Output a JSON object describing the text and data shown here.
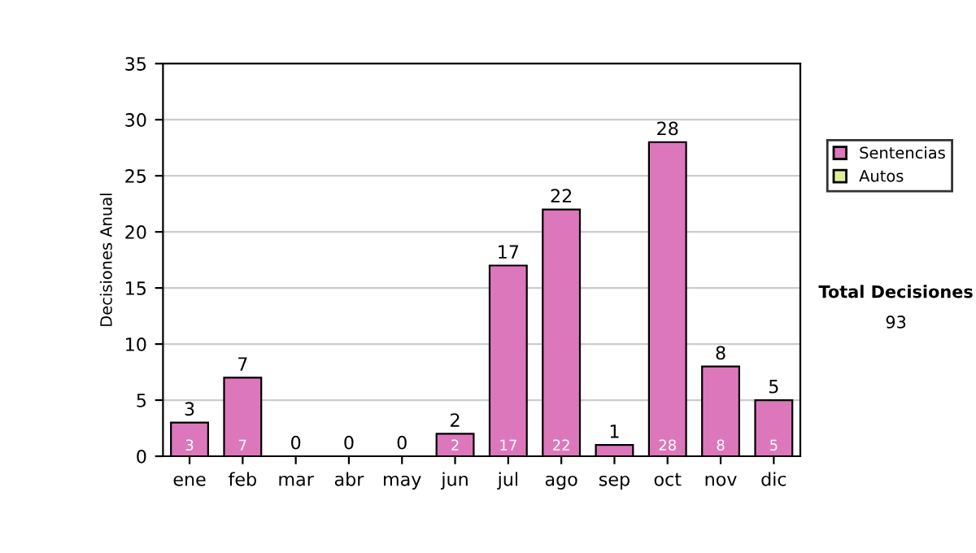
{
  "chart_data": {
    "type": "bar",
    "ylabel": "Decisiones Anual",
    "categories": [
      "ene",
      "feb",
      "mar",
      "abr",
      "may",
      "jun",
      "jul",
      "ago",
      "sep",
      "oct",
      "nov",
      "dic"
    ],
    "stacked": true,
    "series": [
      {
        "name": "Sentencias",
        "color": "#dd77bb",
        "values": [
          3,
          7,
          0,
          0,
          0,
          2,
          17,
          22,
          1,
          28,
          8,
          5
        ],
        "value_labels": [
          "3",
          "7",
          null,
          null,
          null,
          "2",
          "17",
          "22",
          null,
          "28",
          "8",
          "5"
        ]
      },
      {
        "name": "Autos",
        "color": "#ddee99",
        "values": [
          0,
          0,
          0,
          0,
          0,
          0,
          0,
          0,
          0,
          0,
          0,
          0
        ]
      }
    ],
    "totals": [
      "3",
      "7",
      "0",
      "0",
      "0",
      "2",
      "17",
      "22",
      "1",
      "28",
      "8",
      "5"
    ],
    "ylim": [
      0,
      35
    ],
    "yticks": [
      0,
      5,
      10,
      15,
      20,
      25,
      30,
      35
    ],
    "grid": "y",
    "legend": "right",
    "annotations": [
      "Total Decisiones",
      "93"
    ]
  }
}
